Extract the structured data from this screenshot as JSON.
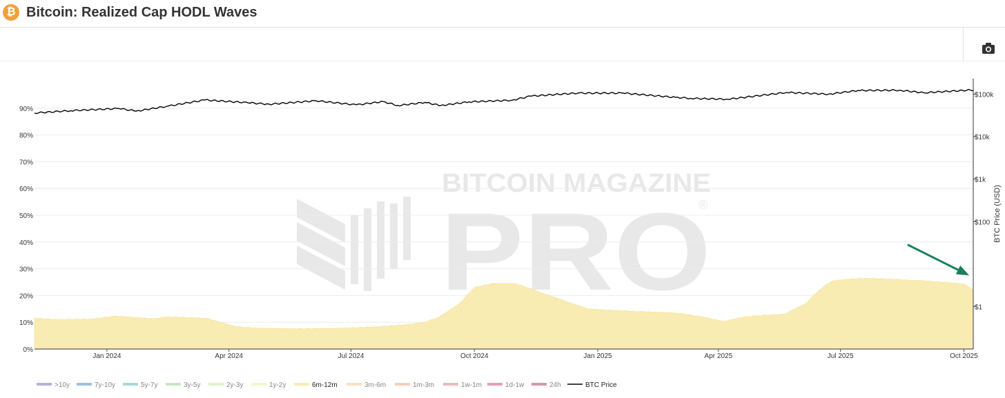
{
  "header": {
    "title": "Bitcoin: Realized Cap HODL Waves",
    "logo_icon": "bitcoin-logo-icon",
    "logo_glyph": "₿"
  },
  "toolbar": {
    "camera_icon": "camera-icon"
  },
  "watermark": {
    "line1": "BITCOIN MAGAZINE",
    "line2": "PRO",
    "mark": "®"
  },
  "chart_data": {
    "type": "area",
    "xlabel": "",
    "ylabel": "",
    "y2label": "BTC Price (USD)",
    "x_ticks": [
      "Jan 2024",
      "Apr 2024",
      "Jul 2024",
      "Oct 2024",
      "Jan 2025",
      "Apr 2025",
      "Jul 2025",
      "Oct 2025"
    ],
    "x_tick_dates": [
      "2024-01-01",
      "2024-04-01",
      "2024-07-01",
      "2024-10-01",
      "2025-01-01",
      "2025-04-01",
      "2025-07-01",
      "2025-10-01"
    ],
    "x_range": [
      "2023-11-08",
      "2025-10-08"
    ],
    "ylim": [
      0,
      100
    ],
    "y_ticks": [
      "0%",
      "10%",
      "20%",
      "30%",
      "40%",
      "50%",
      "60%",
      "70%",
      "80%",
      "90%"
    ],
    "y_tick_values": [
      0,
      10,
      20,
      30,
      40,
      50,
      60,
      70,
      80,
      90
    ],
    "y2_scale": "log",
    "y2lim": [
      0.1,
      200000
    ],
    "y2_ticks": [
      "$1",
      "$100",
      "$1k",
      "$10k",
      "$100k"
    ],
    "y2_tick_values": [
      1,
      100,
      1000,
      10000,
      100000
    ],
    "grid": true,
    "legend_position": "bottom-left",
    "legend": [
      {
        "label": ">10y",
        "color": "#b8b1d8"
      },
      {
        "label": "7y-10y",
        "color": "#9fc0e4"
      },
      {
        "label": "5y-7y",
        "color": "#a6dbd8"
      },
      {
        "label": "3y-5y",
        "color": "#c5e8c3"
      },
      {
        "label": "2y-3y",
        "color": "#e2f1c9"
      },
      {
        "label": "1y-2y",
        "color": "#f7f5cf"
      },
      {
        "label": "6m-12m",
        "color": "#f9ecb3"
      },
      {
        "label": "3m-6m",
        "color": "#fbe0c1"
      },
      {
        "label": "1m-3m",
        "color": "#f8cfb6"
      },
      {
        "label": "1w-1m",
        "color": "#f3b9b6"
      },
      {
        "label": "1d-1w",
        "color": "#ea9fae"
      },
      {
        "label": "24h",
        "color": "#d69aa7"
      },
      {
        "label": "BTC Price",
        "color": "#000000"
      }
    ],
    "series": [
      {
        "name": "6m-12m",
        "color": "#f9ecb3",
        "x": [
          "2023-11-08",
          "2023-11-25",
          "2023-12-20",
          "2024-01-08",
          "2024-02-05",
          "2024-02-15",
          "2024-03-15",
          "2024-04-05",
          "2024-04-20",
          "2024-05-20",
          "2024-06-20",
          "2024-07-20",
          "2024-08-10",
          "2024-08-25",
          "2024-09-05",
          "2024-09-20",
          "2024-10-01",
          "2024-10-15",
          "2024-11-01",
          "2024-11-20",
          "2024-12-10",
          "2024-12-25",
          "2025-01-10",
          "2025-02-01",
          "2025-03-01",
          "2025-03-20",
          "2025-04-05",
          "2025-04-20",
          "2025-05-01",
          "2025-05-20",
          "2025-06-05",
          "2025-06-15",
          "2025-06-25",
          "2025-07-05",
          "2025-07-20",
          "2025-08-10",
          "2025-09-01",
          "2025-09-20",
          "2025-10-01",
          "2025-10-08"
        ],
        "values": [
          11.5,
          11.0,
          11.2,
          12.3,
          11.3,
          12.0,
          11.5,
          8.5,
          7.8,
          7.6,
          7.7,
          8.3,
          9.0,
          10.0,
          12.0,
          17.0,
          23.0,
          24.5,
          24.5,
          21.0,
          17.5,
          15.0,
          14.5,
          14.0,
          13.5,
          12.0,
          10.3,
          12.0,
          12.5,
          13.0,
          17.0,
          22.0,
          25.5,
          26.0,
          26.5,
          26.0,
          25.5,
          24.8,
          24.3,
          22.0
        ]
      },
      {
        "name": "BTC Price",
        "color": "#000000",
        "axis": "y2",
        "x": [
          "2023-11-08",
          "2023-12-05",
          "2024-01-10",
          "2024-01-23",
          "2024-02-15",
          "2024-03-14",
          "2024-04-15",
          "2024-05-01",
          "2024-06-05",
          "2024-07-05",
          "2024-07-25",
          "2024-08-05",
          "2024-08-25",
          "2024-09-06",
          "2024-09-27",
          "2024-10-29",
          "2024-11-12",
          "2024-12-17",
          "2025-01-20",
          "2025-02-28",
          "2025-03-11",
          "2025-04-08",
          "2025-05-22",
          "2025-06-22",
          "2025-07-14",
          "2025-08-14",
          "2025-09-01",
          "2025-10-06",
          "2025-10-08"
        ],
        "values": [
          36000,
          41000,
          46000,
          40000,
          52000,
          73000,
          63000,
          58000,
          70000,
          56000,
          67000,
          54000,
          64000,
          54000,
          66000,
          72000,
          90000,
          106000,
          106000,
          84000,
          80000,
          76000,
          110000,
          100000,
          122000,
          124000,
          108000,
          125000,
          121000
        ]
      }
    ],
    "annotations": [
      {
        "type": "arrow",
        "color": "#1a7f5a",
        "from": [
          "2025-08-20",
          39
        ],
        "to": [
          "2025-10-05",
          27.5
        ]
      }
    ]
  }
}
